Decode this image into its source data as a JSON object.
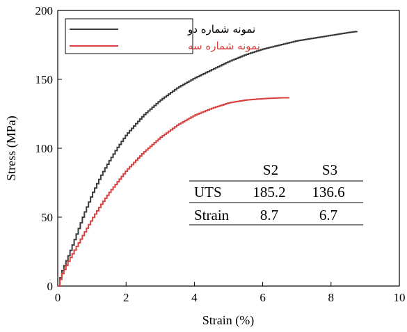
{
  "chart_data": {
    "type": "line",
    "xlabel": "Strain (%)",
    "ylabel": "Stress (MPa)",
    "xlim": [
      0,
      10
    ],
    "ylim": [
      0,
      200
    ],
    "x_ticks": [
      "0",
      "2",
      "4",
      "6",
      "8",
      "10"
    ],
    "y_ticks": [
      "0",
      "50",
      "100",
      "150",
      "200"
    ],
    "grid": false,
    "legend_position": "top-left",
    "series": [
      {
        "name": "نمونه شماره دو",
        "color": "#3a3a3a",
        "x": [
          0,
          0.1,
          0.3,
          0.5,
          0.75,
          1.0,
          1.25,
          1.5,
          1.75,
          2.0,
          2.5,
          3.0,
          3.5,
          4.0,
          4.5,
          5.0,
          5.5,
          6.0,
          6.5,
          7.0,
          7.5,
          8.0,
          8.5,
          8.8
        ],
        "y": [
          0,
          10,
          22,
          35,
          52,
          67,
          80,
          91,
          101,
          110,
          124,
          135,
          144,
          151,
          157,
          163,
          168,
          172,
          175,
          178,
          180,
          182,
          184,
          185
        ]
      },
      {
        "name": "نمونه شماره سه",
        "color": "#d94040",
        "x": [
          0,
          0.1,
          0.3,
          0.5,
          0.75,
          1.0,
          1.25,
          1.5,
          1.75,
          2.0,
          2.5,
          3.0,
          3.5,
          4.0,
          4.5,
          5.0,
          5.5,
          6.0,
          6.5,
          6.8
        ],
        "y": [
          0,
          8,
          18,
          27,
          38,
          49,
          59,
          68,
          76,
          84,
          97,
          108,
          117,
          124,
          129,
          133,
          135,
          136,
          136.6,
          136.6
        ]
      }
    ],
    "table": {
      "headers": [
        "",
        "S2",
        "S3"
      ],
      "rows": [
        [
          "UTS",
          "185.2",
          "136.6"
        ],
        [
          "Strain",
          "8.7",
          "6.7"
        ]
      ]
    }
  }
}
